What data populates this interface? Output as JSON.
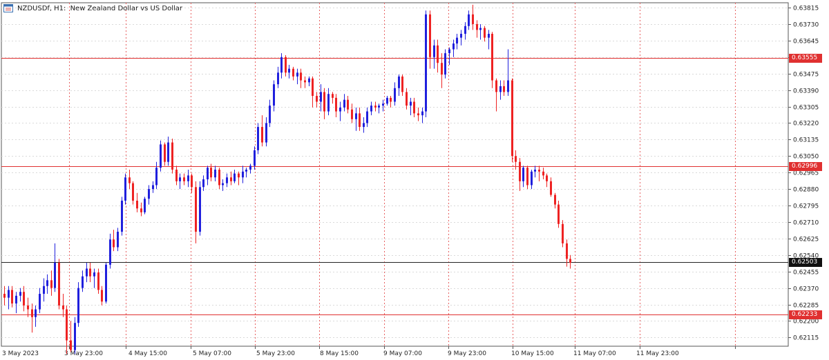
{
  "header": {
    "symbol": "NZDUSDf",
    "timeframe": "H1",
    "description": "New Zealand Dollar vs US Dollar"
  },
  "colors": {
    "bull": "#1f1fdd",
    "bear": "#ee2222",
    "level_line": "#e03030",
    "price_line": "#222222",
    "grid": "#d9d9d9",
    "period_sep": "#e86060"
  },
  "price_axis": {
    "ticks": [
      "0.63815",
      "0.63730",
      "0.63645",
      "0.63560",
      "0.63475",
      "0.63390",
      "0.63305",
      "0.63220",
      "0.63135",
      "0.63050",
      "0.62965",
      "0.62880",
      "0.62795",
      "0.62710",
      "0.62625",
      "0.62540",
      "0.62455",
      "0.62370",
      "0.62285",
      "0.62200",
      "0.62115"
    ],
    "min": 0.6207,
    "max": 0.6384
  },
  "time_axis": {
    "labels": [
      "3 May 2023",
      "3 May 23:00",
      "4 May 15:00",
      "5 May 07:00",
      "5 May 23:00",
      "8 May 15:00",
      "9 May 07:00",
      "9 May 23:00",
      "10 May 15:00",
      "11 May 07:00",
      "11 May 23:00"
    ]
  },
  "levels": [
    {
      "label": "0.63555",
      "value": 0.63555,
      "color": "red"
    },
    {
      "label": "0.62996",
      "value": 0.62996,
      "color": "red"
    },
    {
      "label": "0.62233",
      "value": 0.62233,
      "color": "red"
    }
  ],
  "current_price": {
    "label": "0.62503",
    "value": 0.62503
  },
  "chart_data": {
    "type": "candlestick",
    "symbol": "NZDUSDf",
    "timeframe": "H1",
    "title": "New Zealand Dollar vs US Dollar",
    "ylim": [
      0.6207,
      0.6384
    ],
    "x_tick_labels": [
      "3 May 2023",
      "3 May 23:00",
      "4 May 15:00",
      "5 May 07:00",
      "5 May 23:00",
      "8 May 15:00",
      "9 May 07:00",
      "9 May 23:00",
      "10 May 15:00",
      "11 May 07:00",
      "11 May 23:00"
    ],
    "horizontal_levels": [
      0.63555,
      0.62996,
      0.62233
    ],
    "last_price": 0.62503,
    "candles": [
      [
        0.6234,
        0.6238,
        0.6228,
        0.6232
      ],
      [
        0.6232,
        0.6238,
        0.6226,
        0.6236
      ],
      [
        0.6236,
        0.6238,
        0.6227,
        0.6229
      ],
      [
        0.6229,
        0.6235,
        0.6224,
        0.6233
      ],
      [
        0.6233,
        0.6237,
        0.623,
        0.6235
      ],
      [
        0.6235,
        0.6238,
        0.6225,
        0.6228
      ],
      [
        0.6228,
        0.6232,
        0.6222,
        0.6226
      ],
      [
        0.6226,
        0.6229,
        0.6214,
        0.6222
      ],
      [
        0.6222,
        0.6228,
        0.6217,
        0.6226
      ],
      [
        0.6226,
        0.6237,
        0.6224,
        0.6234
      ],
      [
        0.6234,
        0.6242,
        0.623,
        0.6238
      ],
      [
        0.6238,
        0.6244,
        0.6234,
        0.6241
      ],
      [
        0.6241,
        0.6246,
        0.6233,
        0.6237
      ],
      [
        0.6237,
        0.626,
        0.6235,
        0.625
      ],
      [
        0.625,
        0.6252,
        0.6226,
        0.6228
      ],
      [
        0.6228,
        0.6234,
        0.6222,
        0.6226
      ],
      [
        0.6226,
        0.6228,
        0.6203,
        0.621
      ],
      [
        0.621,
        0.622,
        0.6204,
        0.6205
      ],
      [
        0.6205,
        0.6222,
        0.6203,
        0.6219
      ],
      [
        0.6219,
        0.624,
        0.6217,
        0.6237
      ],
      [
        0.6237,
        0.6246,
        0.6235,
        0.6243
      ],
      [
        0.6243,
        0.625,
        0.624,
        0.6247
      ],
      [
        0.6247,
        0.625,
        0.624,
        0.6243
      ],
      [
        0.6243,
        0.6247,
        0.6237,
        0.6245
      ],
      [
        0.6245,
        0.6247,
        0.6234,
        0.6236
      ],
      [
        0.6236,
        0.6238,
        0.6228,
        0.623
      ],
      [
        0.623,
        0.625,
        0.6229,
        0.6249
      ],
      [
        0.6249,
        0.6265,
        0.6247,
        0.6262
      ],
      [
        0.6262,
        0.6267,
        0.6256,
        0.6258
      ],
      [
        0.6258,
        0.6268,
        0.6256,
        0.6266
      ],
      [
        0.6266,
        0.6284,
        0.6264,
        0.6282
      ],
      [
        0.6282,
        0.6296,
        0.628,
        0.6294
      ],
      [
        0.6294,
        0.6298,
        0.6288,
        0.6291
      ],
      [
        0.6291,
        0.6292,
        0.628,
        0.6282
      ],
      [
        0.6282,
        0.6286,
        0.6276,
        0.6278
      ],
      [
        0.6278,
        0.6281,
        0.6274,
        0.6276
      ],
      [
        0.6276,
        0.6284,
        0.6275,
        0.6283
      ],
      [
        0.6283,
        0.629,
        0.628,
        0.6288
      ],
      [
        0.6288,
        0.6292,
        0.6286,
        0.629
      ],
      [
        0.629,
        0.6302,
        0.6288,
        0.6299
      ],
      [
        0.6299,
        0.6313,
        0.6297,
        0.6311
      ],
      [
        0.6311,
        0.6312,
        0.63,
        0.6302
      ],
      [
        0.6302,
        0.6315,
        0.63,
        0.6312
      ],
      [
        0.6312,
        0.6314,
        0.6296,
        0.6298
      ],
      [
        0.6298,
        0.63,
        0.629,
        0.6292
      ],
      [
        0.6292,
        0.6296,
        0.6288,
        0.6294
      ],
      [
        0.6294,
        0.6296,
        0.629,
        0.6292
      ],
      [
        0.6292,
        0.6298,
        0.6289,
        0.6295
      ],
      [
        0.6295,
        0.6296,
        0.6286,
        0.6289
      ],
      [
        0.6289,
        0.6292,
        0.626,
        0.6266
      ],
      [
        0.6266,
        0.6292,
        0.6264,
        0.6289
      ],
      [
        0.6289,
        0.6295,
        0.6287,
        0.6293
      ],
      [
        0.6293,
        0.63,
        0.629,
        0.6299
      ],
      [
        0.6299,
        0.6301,
        0.6292,
        0.6294
      ],
      [
        0.6294,
        0.63,
        0.6292,
        0.6298
      ],
      [
        0.6298,
        0.6299,
        0.6288,
        0.629
      ],
      [
        0.629,
        0.6293,
        0.6287,
        0.6291
      ],
      [
        0.6291,
        0.6296,
        0.6289,
        0.6294
      ],
      [
        0.6294,
        0.6297,
        0.629,
        0.6292
      ],
      [
        0.6292,
        0.6298,
        0.6291,
        0.6296
      ],
      [
        0.6296,
        0.6297,
        0.629,
        0.6294
      ],
      [
        0.6294,
        0.63,
        0.6291,
        0.6297
      ],
      [
        0.6297,
        0.6299,
        0.6294,
        0.6298
      ],
      [
        0.6298,
        0.6301,
        0.6296,
        0.63
      ],
      [
        0.63,
        0.631,
        0.6298,
        0.6308
      ],
      [
        0.6308,
        0.6322,
        0.6306,
        0.632
      ],
      [
        0.632,
        0.6326,
        0.631,
        0.6312
      ],
      [
        0.6312,
        0.6325,
        0.631,
        0.6322
      ],
      [
        0.6322,
        0.6334,
        0.632,
        0.6331
      ],
      [
        0.6331,
        0.6344,
        0.6328,
        0.6342
      ],
      [
        0.6342,
        0.6351,
        0.634,
        0.6348
      ],
      [
        0.6348,
        0.6358,
        0.6345,
        0.6356
      ],
      [
        0.6356,
        0.6357,
        0.6346,
        0.6348
      ],
      [
        0.6348,
        0.6352,
        0.6345,
        0.635
      ],
      [
        0.635,
        0.6351,
        0.6344,
        0.6346
      ],
      [
        0.6346,
        0.635,
        0.6342,
        0.6348
      ],
      [
        0.6348,
        0.635,
        0.634,
        0.6344
      ],
      [
        0.6344,
        0.6346,
        0.634,
        0.6343
      ],
      [
        0.6343,
        0.6346,
        0.6341,
        0.6345
      ],
      [
        0.6345,
        0.6346,
        0.633,
        0.6336
      ],
      [
        0.6336,
        0.6338,
        0.633,
        0.6333
      ],
      [
        0.6333,
        0.6342,
        0.6328,
        0.6338
      ],
      [
        0.6338,
        0.634,
        0.6324,
        0.6328
      ],
      [
        0.6328,
        0.634,
        0.6326,
        0.6337
      ],
      [
        0.6337,
        0.6338,
        0.6332,
        0.6335
      ],
      [
        0.6335,
        0.6337,
        0.6325,
        0.6328
      ],
      [
        0.6328,
        0.6333,
        0.6323,
        0.633
      ],
      [
        0.633,
        0.6337,
        0.6328,
        0.6334
      ],
      [
        0.6334,
        0.6336,
        0.6327,
        0.6329
      ],
      [
        0.6329,
        0.6332,
        0.6322,
        0.6324
      ],
      [
        0.6324,
        0.633,
        0.6318,
        0.6327
      ],
      [
        0.6327,
        0.633,
        0.6318,
        0.632
      ],
      [
        0.632,
        0.6325,
        0.6317,
        0.6322
      ],
      [
        0.6322,
        0.633,
        0.632,
        0.6328
      ],
      [
        0.6328,
        0.6333,
        0.6326,
        0.6331
      ],
      [
        0.6331,
        0.6333,
        0.6328,
        0.633
      ],
      [
        0.633,
        0.6332,
        0.6327,
        0.6331
      ],
      [
        0.6331,
        0.6334,
        0.6328,
        0.6332
      ],
      [
        0.6332,
        0.6336,
        0.6331,
        0.6335
      ],
      [
        0.6335,
        0.6336,
        0.633,
        0.6333
      ],
      [
        0.6333,
        0.6343,
        0.6331,
        0.634
      ],
      [
        0.634,
        0.6347,
        0.6336,
        0.6346
      ],
      [
        0.6346,
        0.6347,
        0.6336,
        0.6338
      ],
      [
        0.6338,
        0.634,
        0.6329,
        0.6331
      ],
      [
        0.6331,
        0.6335,
        0.6326,
        0.6333
      ],
      [
        0.6333,
        0.6335,
        0.6325,
        0.6327
      ],
      [
        0.6327,
        0.633,
        0.6323,
        0.6326
      ],
      [
        0.6326,
        0.633,
        0.6322,
        0.6328
      ],
      [
        0.6328,
        0.638,
        0.6325,
        0.6378
      ],
      [
        0.6378,
        0.638,
        0.635,
        0.6356
      ],
      [
        0.6356,
        0.6365,
        0.635,
        0.6362
      ],
      [
        0.6362,
        0.6365,
        0.6348,
        0.6353
      ],
      [
        0.6353,
        0.6358,
        0.634,
        0.6347
      ],
      [
        0.6347,
        0.636,
        0.6345,
        0.6358
      ],
      [
        0.6358,
        0.6361,
        0.6352,
        0.636
      ],
      [
        0.636,
        0.6365,
        0.6356,
        0.6363
      ],
      [
        0.6363,
        0.6368,
        0.636,
        0.6366
      ],
      [
        0.6366,
        0.637,
        0.6362,
        0.6368
      ],
      [
        0.6368,
        0.6374,
        0.6365,
        0.6372
      ],
      [
        0.6372,
        0.638,
        0.637,
        0.6378
      ],
      [
        0.6378,
        0.6383,
        0.637,
        0.6373
      ],
      [
        0.6373,
        0.6375,
        0.6366,
        0.637
      ],
      [
        0.637,
        0.6373,
        0.6365,
        0.6371
      ],
      [
        0.6371,
        0.6372,
        0.6364,
        0.6366
      ],
      [
        0.6366,
        0.637,
        0.636,
        0.6368
      ],
      [
        0.6368,
        0.6369,
        0.634,
        0.6344
      ],
      [
        0.6344,
        0.6345,
        0.6328,
        0.6338
      ],
      [
        0.6338,
        0.6344,
        0.6334,
        0.6341
      ],
      [
        0.6341,
        0.6344,
        0.6336,
        0.6338
      ],
      [
        0.6338,
        0.636,
        0.6336,
        0.6344
      ],
      [
        0.6344,
        0.6345,
        0.6302,
        0.6305
      ],
      [
        0.6305,
        0.6308,
        0.6298,
        0.6302
      ],
      [
        0.6302,
        0.6304,
        0.6287,
        0.6292
      ],
      [
        0.6292,
        0.63,
        0.6289,
        0.6299
      ],
      [
        0.6299,
        0.63,
        0.6288,
        0.629
      ],
      [
        0.629,
        0.6298,
        0.6288,
        0.6297
      ],
      [
        0.6297,
        0.63,
        0.6294,
        0.6298
      ],
      [
        0.6298,
        0.63,
        0.6292,
        0.6297
      ],
      [
        0.6297,
        0.6299,
        0.6293,
        0.6295
      ],
      [
        0.6295,
        0.6296,
        0.6289,
        0.6292
      ],
      [
        0.6292,
        0.6294,
        0.6284,
        0.6285
      ],
      [
        0.6285,
        0.6286,
        0.6278,
        0.628
      ],
      [
        0.628,
        0.6282,
        0.6268,
        0.627
      ],
      [
        0.627,
        0.6272,
        0.6258,
        0.626
      ],
      [
        0.626,
        0.6262,
        0.6248,
        0.6252
      ],
      [
        0.6252,
        0.6254,
        0.6247,
        0.625
      ]
    ]
  }
}
